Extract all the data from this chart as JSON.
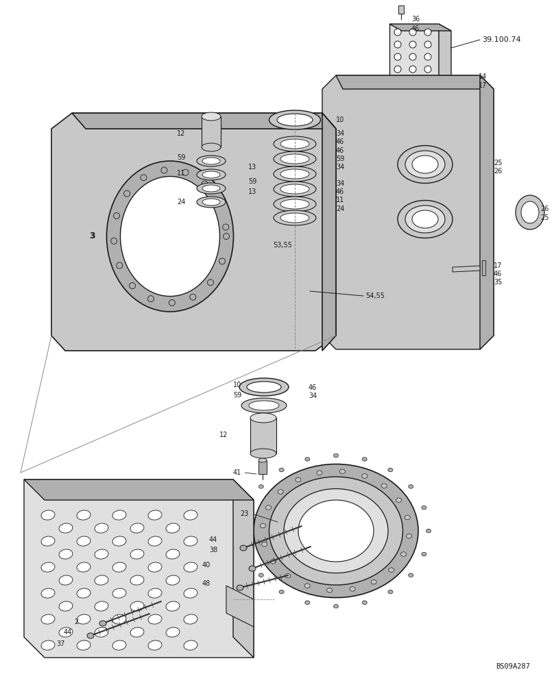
{
  "bg_color": "#ffffff",
  "lc": "#1a1a1a",
  "figw": 8.08,
  "figh": 10.0,
  "dpi": 100,
  "footer": "BS09A287",
  "ref": "39.100.74"
}
